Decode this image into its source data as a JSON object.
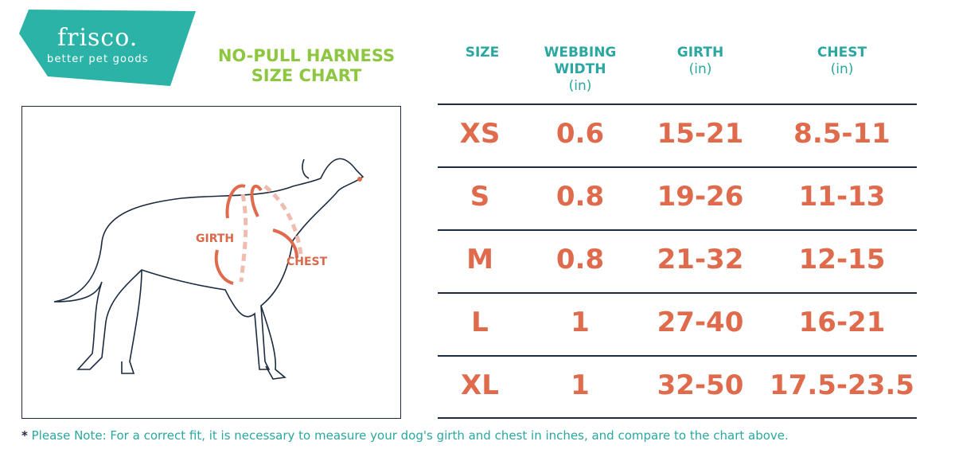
{
  "brand": {
    "name": "frisco.",
    "tagline": "better pet goods",
    "color": "#2bb3a8"
  },
  "title": {
    "line1": "NO-PULL HARNESS",
    "line2": "SIZE CHART",
    "color": "#8dc63f"
  },
  "diagram": {
    "girth_label": "GIRTH",
    "chest_label": "CHEST",
    "accent": "#df6a4c"
  },
  "table": {
    "headers": [
      {
        "label": "SIZE",
        "unit": ""
      },
      {
        "label": "WEBBING WIDTH",
        "unit": "(in)"
      },
      {
        "label": "GIRTH",
        "unit": "(in)"
      },
      {
        "label": "CHEST",
        "unit": "(in)"
      }
    ],
    "rows": [
      [
        "XS",
        "0.6",
        "15-21",
        "8.5-11"
      ],
      [
        "S",
        "0.8",
        "19-26",
        "11-13"
      ],
      [
        "M",
        "0.8",
        "21-32",
        "12-15"
      ],
      [
        "L",
        "1",
        "27-40",
        "16-21"
      ],
      [
        "XL",
        "1",
        "32-50",
        "17.5-23.5"
      ]
    ]
  },
  "note": {
    "star": "*",
    "text": "Please Note: For a correct fit, it is necessary to measure your dog's girth and chest in inches, and compare to the chart above."
  }
}
